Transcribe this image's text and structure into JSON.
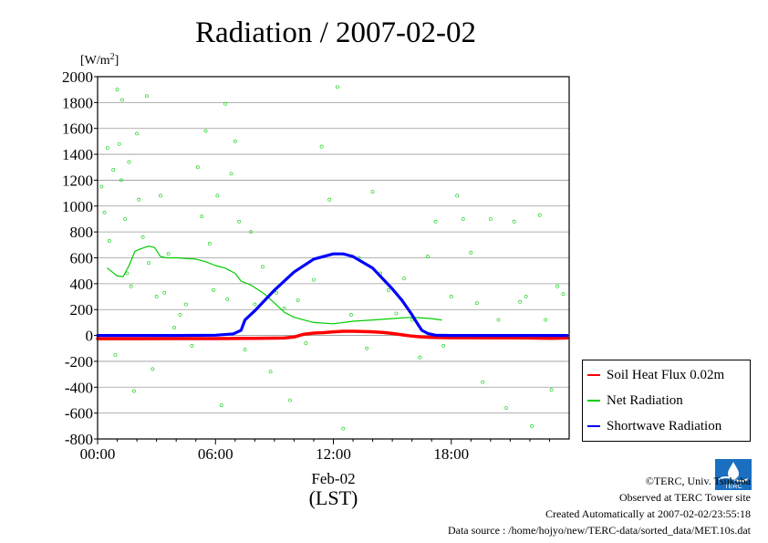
{
  "chart_data": {
    "type": "line",
    "title": "Radiation / 2007-02-02",
    "ylabel_prefix": "[W/m",
    "ylabel_sup": "2",
    "ylabel_suffix": "]",
    "ylim": [
      -800,
      2000
    ],
    "yticks": [
      -800,
      -600,
      -400,
      -200,
      0,
      200,
      400,
      600,
      800,
      1000,
      1200,
      1400,
      1600,
      1800,
      2000
    ],
    "xlim": [
      0,
      24
    ],
    "xticks": [
      {
        "value": 0,
        "label": "00:00"
      },
      {
        "value": 6,
        "label": "06:00"
      },
      {
        "value": 12,
        "label": "12:00"
      },
      {
        "value": 18,
        "label": "18:00"
      }
    ],
    "xlabel_date": "Feb-02",
    "xlabel_unit": "(LST)",
    "grid": true,
    "legend_position": "right-middle",
    "series": [
      {
        "name": "Soil Heat Flux 0.02m",
        "color": "#ff0000",
        "x": [
          0,
          2,
          4,
          6,
          8,
          9.5,
          10,
          10.5,
          11,
          11.5,
          12,
          12.5,
          13,
          13.5,
          14,
          14.5,
          15,
          15.5,
          16,
          16.5,
          17,
          18,
          19,
          20,
          21,
          22,
          23,
          23.9
        ],
        "y": [
          -25,
          -25,
          -24,
          -24,
          -23,
          -20,
          -12,
          10,
          18,
          22,
          28,
          32,
          32,
          31,
          28,
          23,
          15,
          5,
          -5,
          -12,
          -15,
          -18,
          -18,
          -19,
          -19,
          -20,
          -22,
          -20
        ]
      },
      {
        "name": "Net Radiation",
        "color": "#00cc00",
        "x": [
          0.5,
          1.0,
          1.3,
          1.6,
          1.9,
          2.2,
          2.6,
          2.9,
          3.2,
          3.5,
          4.0,
          5.0,
          5.5,
          6.0,
          6.5,
          7.0,
          7.3,
          7.8,
          8.5,
          9.0,
          9.5,
          10.0,
          11.0,
          12.0,
          13.0,
          14.0,
          15.0,
          16.0,
          16.5,
          17.0,
          17.5
        ],
        "y": [
          520,
          460,
          455,
          540,
          650,
          670,
          690,
          680,
          610,
          600,
          600,
          590,
          570,
          540,
          520,
          480,
          420,
          390,
          320,
          250,
          180,
          140,
          100,
          90,
          110,
          120,
          130,
          140,
          135,
          130,
          120
        ]
      },
      {
        "name": "Shortwave Radiation",
        "color": "#0000ff",
        "x": [
          0,
          2,
          4,
          6,
          6.9,
          7.3,
          7.5,
          8,
          9,
          10,
          11,
          12,
          12.5,
          13,
          14,
          15,
          15.5,
          16,
          16.2,
          16.5,
          16.8,
          17.2,
          18,
          20,
          22,
          23.9
        ],
        "y": [
          0,
          0,
          0,
          2,
          12,
          40,
          120,
          190,
          350,
          490,
          590,
          630,
          630,
          610,
          520,
          360,
          270,
          160,
          110,
          40,
          15,
          2,
          0,
          0,
          0,
          0
        ]
      }
    ],
    "net_radiation_scatter": {
      "x": [
        0.2,
        0.35,
        0.5,
        0.6,
        0.8,
        0.9,
        1.0,
        1.1,
        1.2,
        1.25,
        1.4,
        1.5,
        1.6,
        1.7,
        1.85,
        2.0,
        2.1,
        2.3,
        2.5,
        2.6,
        2.8,
        3.0,
        3.2,
        3.4,
        3.6,
        3.9,
        4.2,
        4.5,
        4.8,
        5.1,
        5.3,
        5.5,
        5.7,
        5.9,
        6.1,
        6.3,
        6.5,
        6.6,
        6.8,
        7.0,
        7.2,
        7.5,
        7.8,
        8.0,
        8.4,
        8.8,
        9.1,
        9.5,
        9.8,
        10.2,
        10.6,
        11.0,
        11.4,
        11.8,
        12.2,
        12.5,
        12.9,
        13.3,
        13.7,
        14.0,
        14.4,
        14.8,
        15.2,
        15.6,
        16.0,
        16.4,
        16.8,
        17.2,
        17.6,
        18.0,
        18.3,
        18.6,
        19.0,
        19.3,
        19.6,
        20.0,
        20.4,
        20.8,
        21.2,
        21.5,
        21.8,
        22.1,
        22.5,
        22.8,
        23.1,
        23.4,
        23.7
      ],
      "y": [
        1150,
        950,
        1450,
        730,
        1280,
        -150,
        1900,
        1480,
        1200,
        1820,
        900,
        480,
        1340,
        380,
        -430,
        1560,
        1050,
        760,
        1850,
        560,
        -260,
        300,
        1080,
        330,
        630,
        60,
        160,
        240,
        -80,
        1300,
        920,
        1580,
        710,
        350,
        1080,
        -540,
        1790,
        280,
        1250,
        1500,
        880,
        -110,
        800,
        240,
        530,
        -280,
        330,
        210,
        -500,
        270,
        -60,
        430,
        1460,
        1050,
        1920,
        -720,
        160,
        600,
        -100,
        1110,
        480,
        350,
        170,
        440,
        120,
        -170,
        610,
        880,
        -80,
        300,
        1080,
        900,
        640,
        250,
        -360,
        900,
        120,
        -560,
        880,
        260,
        300,
        -700,
        930,
        120,
        -420,
        380,
        320
      ]
    },
    "legend_entries": [
      "Soil Heat Flux 0.02m",
      "Net Radiation",
      "Shortwave Radiation"
    ],
    "colors": {
      "soil": "#ff0000",
      "net": "#00cc00",
      "shortwave": "#0000ff",
      "grid": "#999999"
    }
  },
  "credits": {
    "copyright": "©TERC, Univ. Tsukuba",
    "observed": "Observed at TERC Tower site",
    "created": "Created Automatically at 2007-02-02/23:55:18",
    "source": "Data source : /home/hojyo/new/TERC-data/sorted_data/MET.10s.dat"
  },
  "logo": {
    "icon": "terc-logo-icon",
    "text": "TERC"
  }
}
